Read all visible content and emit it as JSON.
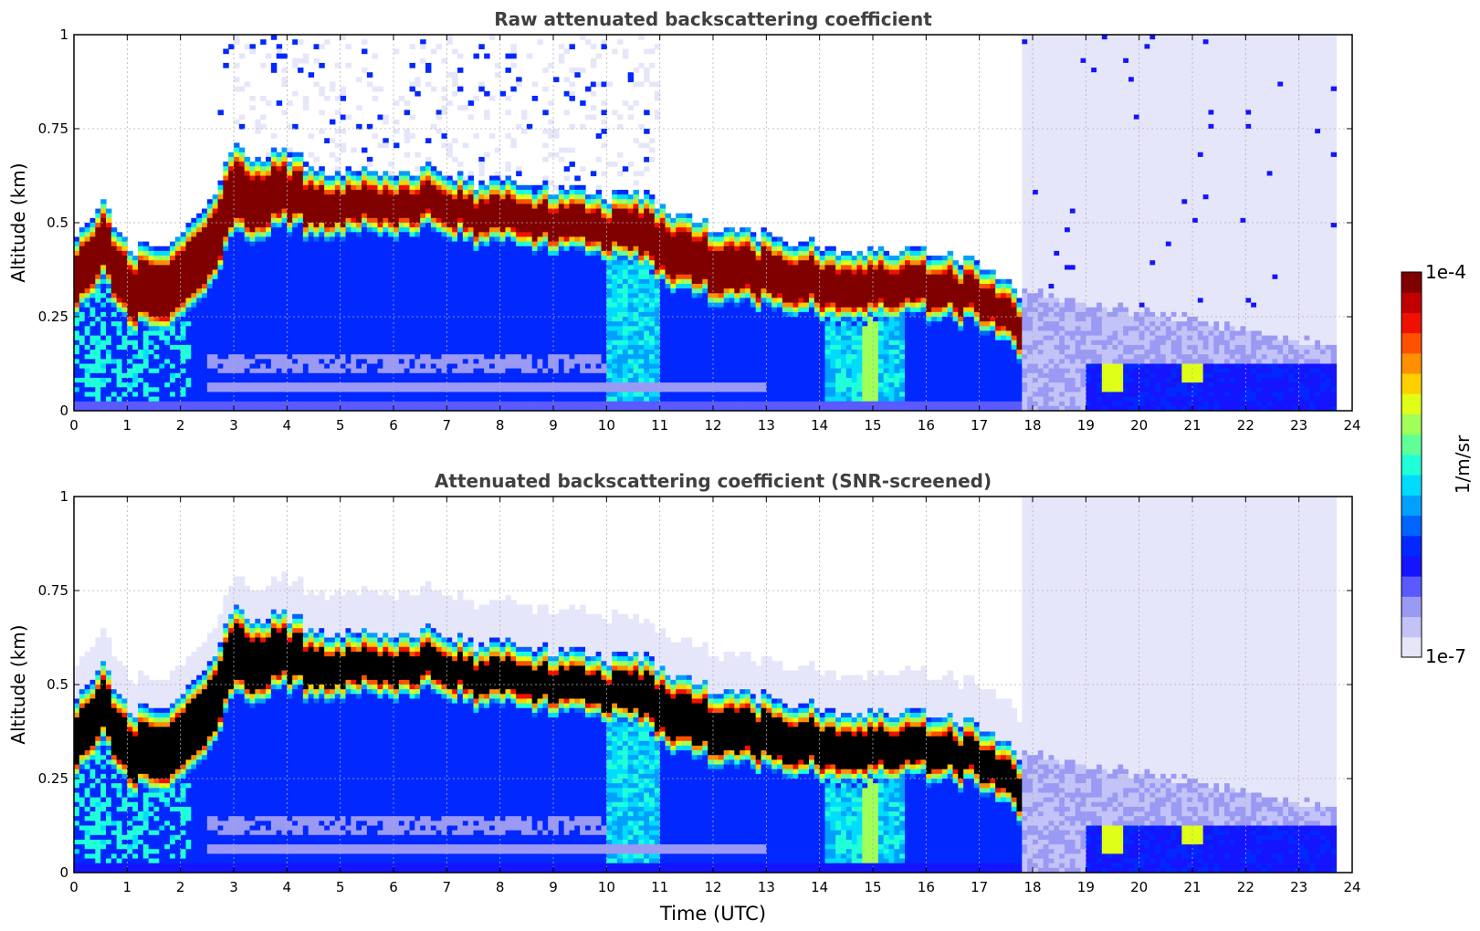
{
  "chart_data": [
    {
      "type": "heatmap",
      "title": "Raw attenuated backscattering coefficient",
      "xlabel": "",
      "ylabel": "Altitude (km)",
      "xlim": [
        0,
        24
      ],
      "ylim": [
        0,
        1
      ],
      "x_ticks": [
        "0",
        "1",
        "2",
        "3",
        "4",
        "5",
        "6",
        "7",
        "8",
        "9",
        "10",
        "11",
        "12",
        "13",
        "14",
        "15",
        "16",
        "17",
        "18",
        "19",
        "20",
        "21",
        "22",
        "23",
        "24"
      ],
      "y_ticks": [
        "0",
        "0.25",
        "0.5",
        "0.75",
        "1"
      ],
      "grid": true,
      "description_data": {
        "cloud_layer_center_km": [
          [
            0,
            0.33
          ],
          [
            0.5,
            0.45
          ],
          [
            1,
            0.32
          ],
          [
            1.5,
            0.32
          ],
          [
            2,
            0.35
          ],
          [
            2.5,
            0.42
          ],
          [
            3,
            0.58
          ],
          [
            3.3,
            0.56
          ],
          [
            3.6,
            0.56
          ],
          [
            4,
            0.58
          ],
          [
            4.5,
            0.55
          ],
          [
            5,
            0.55
          ],
          [
            5.5,
            0.55
          ],
          [
            6,
            0.54
          ],
          [
            6.5,
            0.56
          ],
          [
            7,
            0.54
          ],
          [
            7.5,
            0.52
          ],
          [
            8,
            0.52
          ],
          [
            8.5,
            0.5
          ],
          [
            9,
            0.5
          ],
          [
            10,
            0.48
          ],
          [
            10.5,
            0.48
          ],
          [
            11,
            0.44
          ],
          [
            12,
            0.38
          ],
          [
            13,
            0.36
          ],
          [
            14,
            0.34
          ],
          [
            15,
            0.33
          ],
          [
            16,
            0.33
          ],
          [
            17,
            0.3
          ],
          [
            17.8,
            0.22
          ]
        ],
        "cloud_core_thickness_km": [
          [
            0,
            0.12
          ],
          [
            3,
            0.15
          ],
          [
            5,
            0.08
          ],
          [
            10,
            0.08
          ],
          [
            11,
            0.12
          ],
          [
            14,
            0.1
          ],
          [
            17.8,
            0.08
          ]
        ],
        "cloud_end_utc": 17.8,
        "data_end_utc": 23.7,
        "aerosol_features": [
          {
            "utc": 19.5,
            "altitude_km": 0.1
          },
          {
            "utc": 21,
            "altitude_km": 0.12
          }
        ]
      }
    },
    {
      "type": "heatmap",
      "title": "Attenuated backscattering coefficient (SNR-screened)",
      "xlabel": "Time (UTC)",
      "ylabel": "Altitude (km)",
      "xlim": [
        0,
        24
      ],
      "ylim": [
        0,
        1
      ],
      "x_ticks": [
        "0",
        "1",
        "2",
        "3",
        "4",
        "5",
        "6",
        "7",
        "8",
        "9",
        "10",
        "11",
        "12",
        "13",
        "14",
        "15",
        "16",
        "17",
        "18",
        "19",
        "20",
        "21",
        "22",
        "23",
        "24"
      ],
      "y_ticks": [
        "0",
        "0.25",
        "0.5",
        "0.75",
        "1"
      ],
      "grid": true
    }
  ],
  "colorbar": {
    "max_label": "1e-4",
    "min_label": "1e-7",
    "label": "1/m/sr",
    "colors": [
      "#e6e6fa",
      "#c3c3f7",
      "#9a9af5",
      "#5a5aff",
      "#1414ff",
      "#0028ff",
      "#0064ff",
      "#00a0ff",
      "#00dcff",
      "#20ffd8",
      "#60ff98",
      "#a0ff58",
      "#e0ff18",
      "#ffd000",
      "#ff9000",
      "#ff5000",
      "#f01000",
      "#c00000",
      "#800000"
    ]
  },
  "colors": {
    "background": "#ffffff",
    "no_signal": "#e6e6fa",
    "saturated_screened": "#000000",
    "title_text": "#404040"
  }
}
